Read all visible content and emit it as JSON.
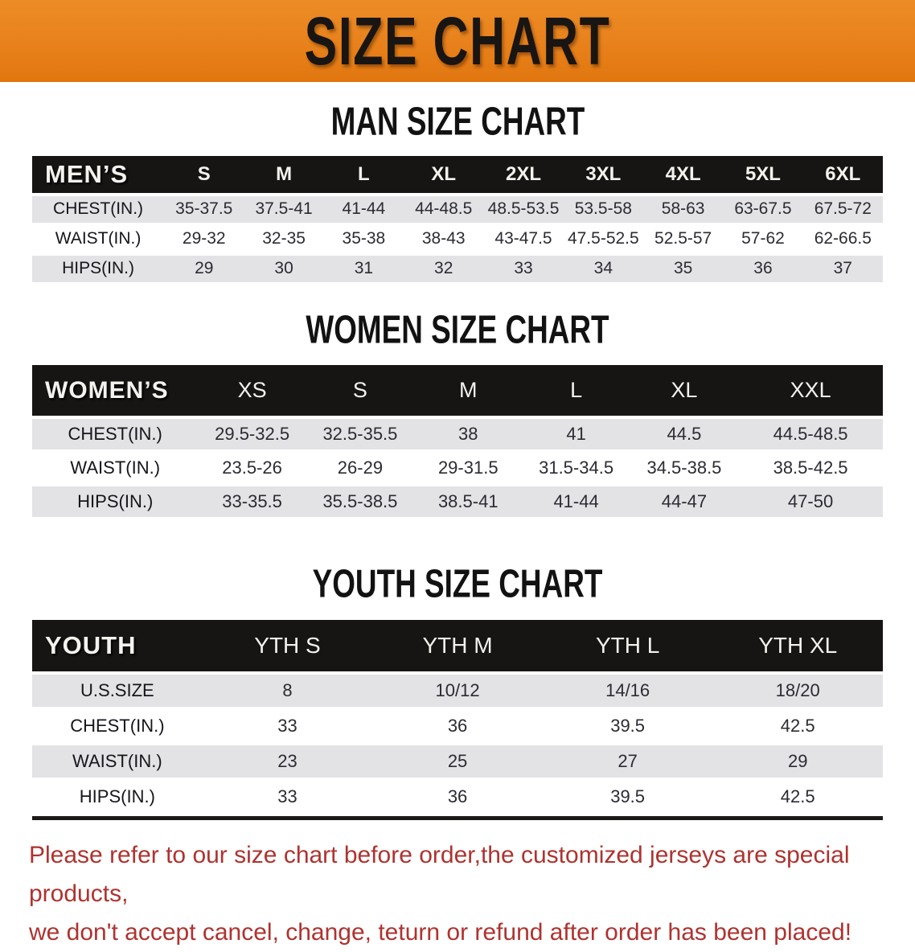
{
  "banner": {
    "title": "SIZE CHART"
  },
  "colors": {
    "banner_orange": "#e8811b",
    "header_black": "#171513",
    "row_gray": "#e3e3e5",
    "note_red": "#ae3330"
  },
  "charts": {
    "men": {
      "heading": "MAN SIZE CHART",
      "label": "MEN’S",
      "columns": [
        "S",
        "M",
        "L",
        "XL",
        "2XL",
        "3XL",
        "4XL",
        "5XL",
        "6XL"
      ],
      "rows": [
        {
          "label": "CHEST(IN.)",
          "values": [
            "35-37.5",
            "37.5-41",
            "41-44",
            "44-48.5",
            "48.5-53.5",
            "53.5-58",
            "58-63",
            "63-67.5",
            "67.5-72"
          ]
        },
        {
          "label": "WAIST(IN.)",
          "values": [
            "29-32",
            "32-35",
            "35-38",
            "38-43",
            "43-47.5",
            "47.5-52.5",
            "52.5-57",
            "57-62",
            "62-66.5"
          ]
        },
        {
          "label": "HIPS(IN.)",
          "values": [
            "29",
            "30",
            "31",
            "32",
            "33",
            "34",
            "35",
            "36",
            "37"
          ]
        }
      ]
    },
    "women": {
      "heading": "WOMEN SIZE CHART",
      "label": "WOMEN’S",
      "columns": [
        "XS",
        "S",
        "M",
        "L",
        "XL",
        "XXL"
      ],
      "rows": [
        {
          "label": "CHEST(IN.)",
          "values": [
            "29.5-32.5",
            "32.5-35.5",
            "38",
            "41",
            "44.5",
            "44.5-48.5"
          ]
        },
        {
          "label": "WAIST(IN.)",
          "values": [
            "23.5-26",
            "26-29",
            "29-31.5",
            "31.5-34.5",
            "34.5-38.5",
            "38.5-42.5"
          ]
        },
        {
          "label": "HIPS(IN.)",
          "values": [
            "33-35.5",
            "35.5-38.5",
            "38.5-41",
            "41-44",
            "44-47",
            "47-50"
          ]
        }
      ]
    },
    "youth": {
      "heading": "YOUTH SIZE CHART",
      "label": "YOUTH",
      "columns": [
        "YTH S",
        "YTH M",
        "YTH L",
        "YTH XL"
      ],
      "rows": [
        {
          "label": "U.S.SIZE",
          "values": [
            "8",
            "10/12",
            "14/16",
            "18/20"
          ]
        },
        {
          "label": "CHEST(IN.)",
          "values": [
            "33",
            "36",
            "39.5",
            "42.5"
          ]
        },
        {
          "label": "WAIST(IN.)",
          "values": [
            "23",
            "25",
            "27",
            "29"
          ]
        },
        {
          "label": "HIPS(IN.)",
          "values": [
            "33",
            "36",
            "39.5",
            "42.5"
          ]
        }
      ]
    }
  },
  "note": {
    "line1": "Please refer to our size chart before order,the customized jerseys are special products,",
    "line2": "we don't accept cancel, change, teturn or refund after order has been placed!"
  }
}
